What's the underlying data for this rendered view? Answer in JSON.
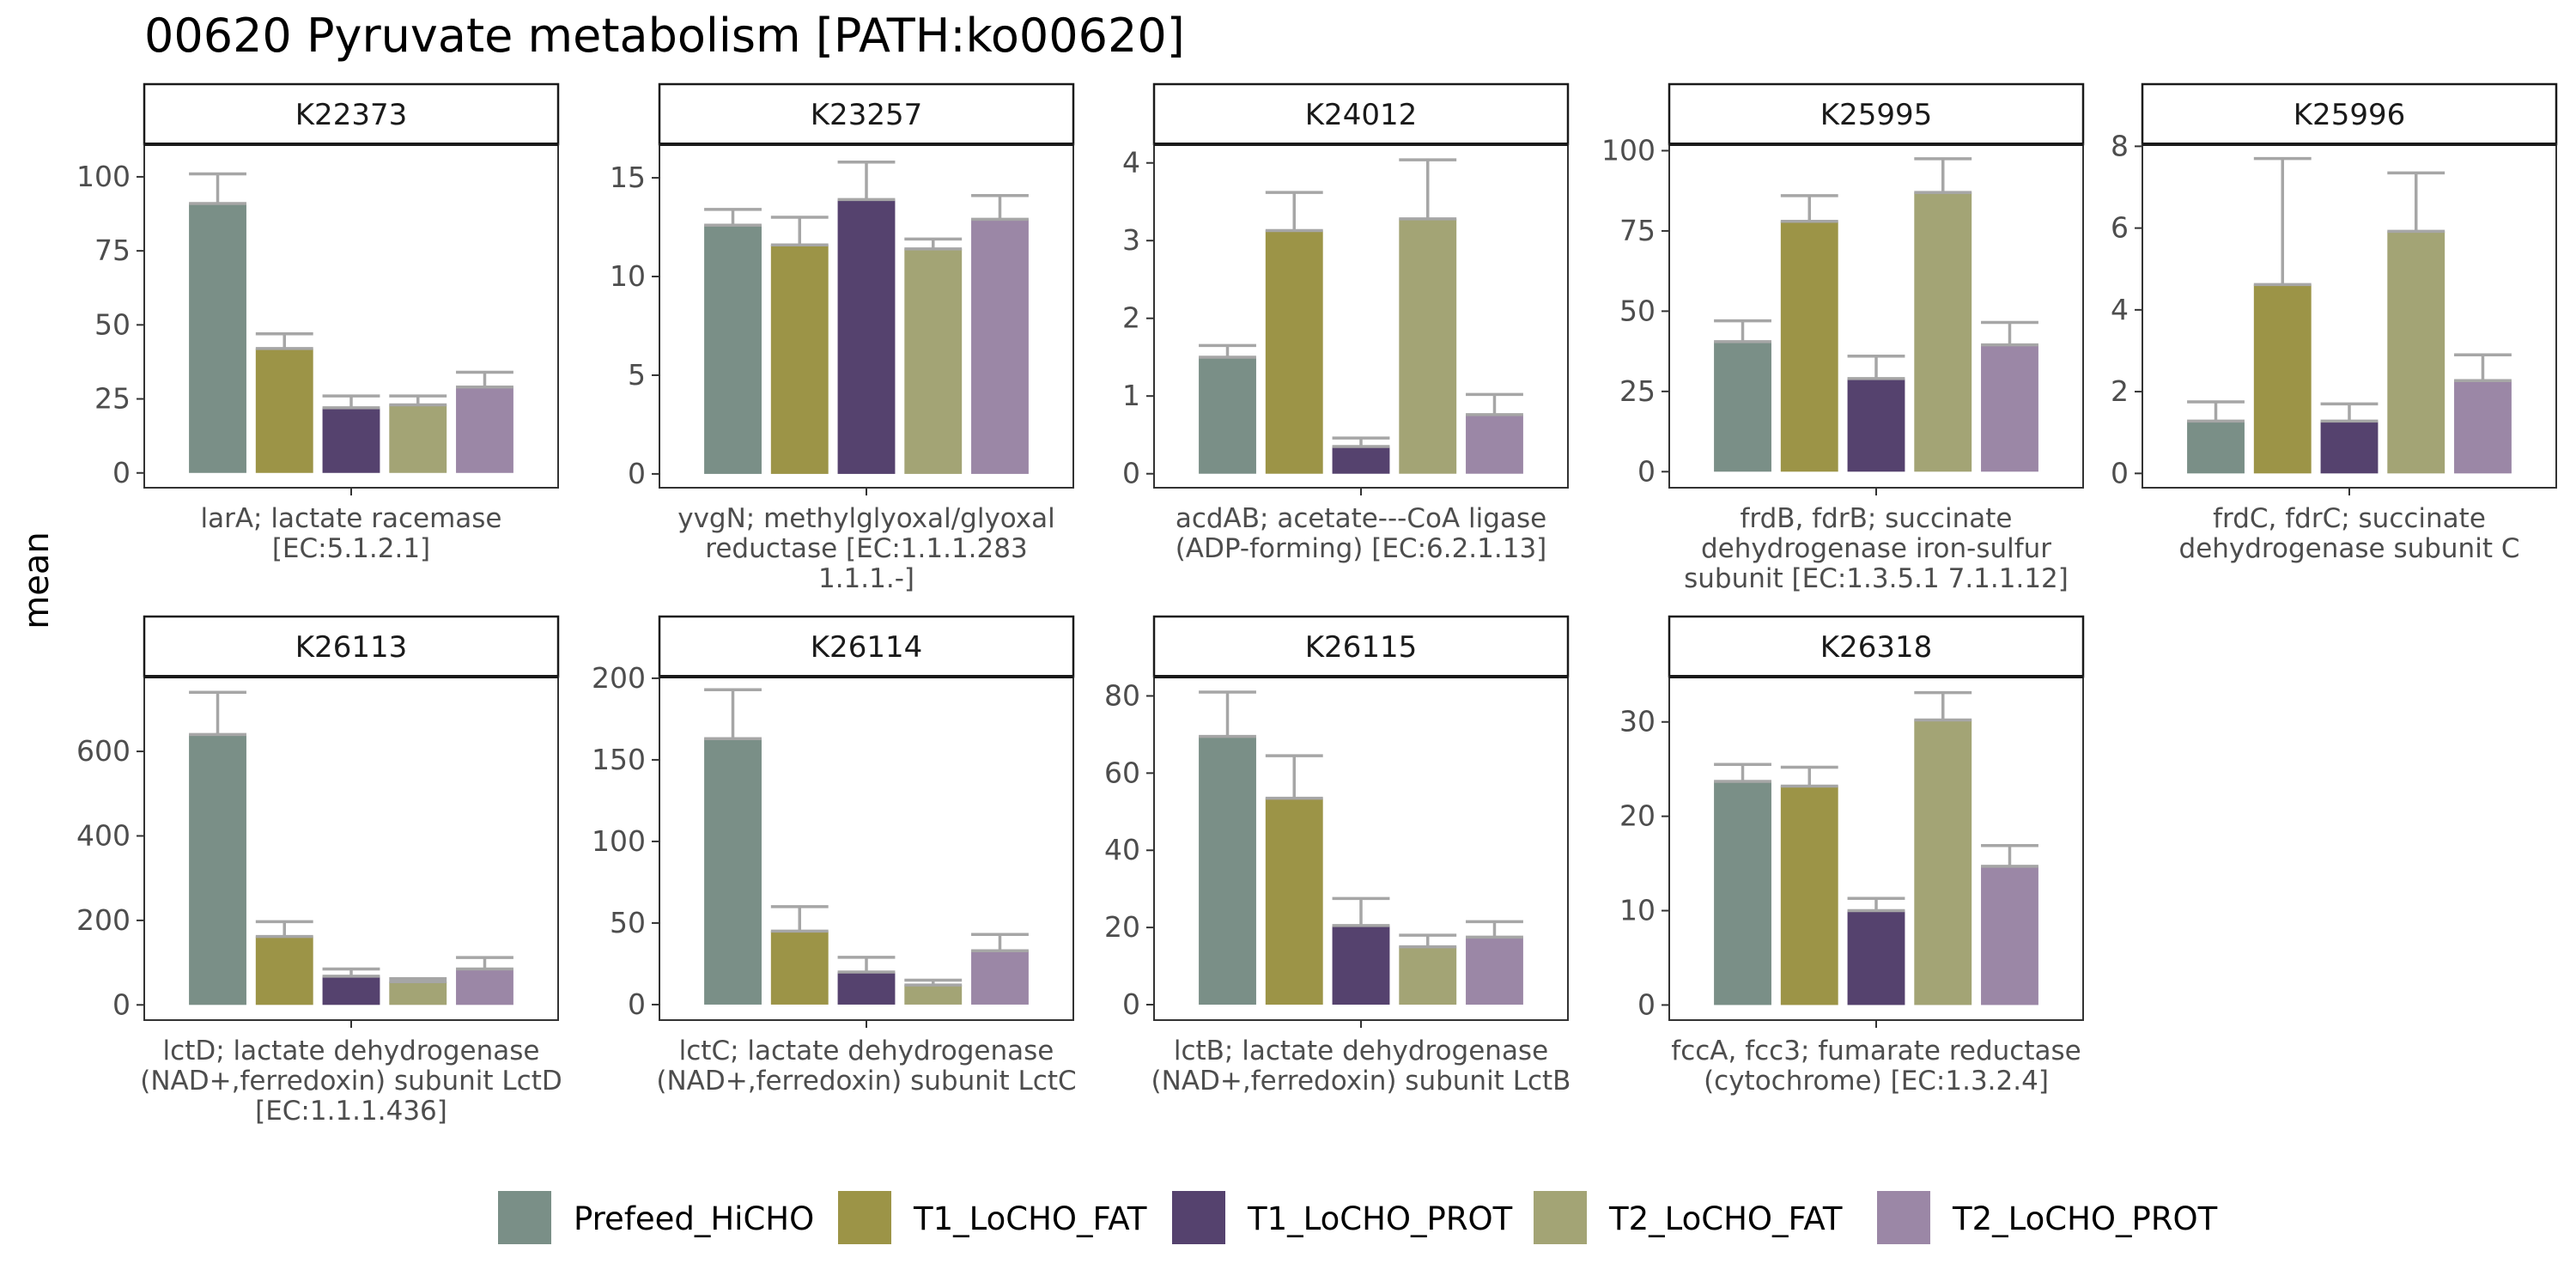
{
  "title": "00620 Pyruvate metabolism [PATH:ko00620]",
  "ylabel": "mean",
  "groups": [
    "Prefeed_HiCHO",
    "T1_LoCHO_FAT",
    "T1_LoCHO_PROT",
    "T2_LoCHO_FAT",
    "T2_LoCHO_PROT"
  ],
  "colors": {
    "Prefeed_HiCHO": "#7a8f87",
    "T1_LoCHO_FAT": "#9c9447",
    "T1_LoCHO_PROT": "#55426e",
    "T2_LoCHO_FAT": "#a3a475",
    "T2_LoCHO_PROT": "#9b87a6",
    "errorbar": "#a6a6a6"
  },
  "chart_data": [
    {
      "type": "bar",
      "title": "K22373",
      "xlabel": [
        "larA; lactate racemase",
        "[EC:5.1.2.1]"
      ],
      "categories": [
        "Prefeed_HiCHO",
        "T1_LoCHO_FAT",
        "T1_LoCHO_PROT",
        "T2_LoCHO_FAT",
        "T2_LoCHO_PROT"
      ],
      "values": [
        91,
        42,
        22,
        23,
        29
      ],
      "err_upper": [
        101,
        47,
        26,
        26,
        34
      ],
      "yticks": [
        0,
        25,
        50,
        75,
        100
      ],
      "ylim": [
        -5,
        111
      ]
    },
    {
      "type": "bar",
      "title": "K23257",
      "xlabel": [
        "yvgN; methylglyoxal/glyoxal",
        "reductase [EC:1.1.1.283",
        "1.1.1.-]"
      ],
      "categories": [
        "Prefeed_HiCHO",
        "T1_LoCHO_FAT",
        "T1_LoCHO_PROT",
        "T2_LoCHO_FAT",
        "T2_LoCHO_PROT"
      ],
      "values": [
        12.6,
        11.6,
        13.9,
        11.4,
        12.9
      ],
      "err_upper": [
        13.4,
        13.0,
        15.8,
        11.9,
        14.1
      ],
      "yticks": [
        0,
        5,
        10,
        15
      ],
      "ylim": [
        -0.7,
        16.7
      ]
    },
    {
      "type": "bar",
      "title": "K24012",
      "xlabel": [
        "acdAB; acetate---CoA ligase",
        "(ADP-forming) [EC:6.2.1.13]"
      ],
      "categories": [
        "Prefeed_HiCHO",
        "T1_LoCHO_FAT",
        "T1_LoCHO_PROT",
        "T2_LoCHO_FAT",
        "T2_LoCHO_PROT"
      ],
      "values": [
        1.5,
        3.13,
        0.35,
        3.28,
        0.76
      ],
      "err_upper": [
        1.65,
        3.62,
        0.46,
        4.04,
        1.02
      ],
      "yticks": [
        0,
        1,
        2,
        3,
        4
      ],
      "ylim": [
        -0.18,
        4.24
      ]
    },
    {
      "type": "bar",
      "title": "K25995",
      "xlabel": [
        "frdB, fdrB; succinate",
        "dehydrogenase iron-sulfur",
        "subunit [EC:1.3.5.1 7.1.1.12]"
      ],
      "categories": [
        "Prefeed_HiCHO",
        "T1_LoCHO_FAT",
        "T1_LoCHO_PROT",
        "T2_LoCHO_FAT",
        "T2_LoCHO_PROT"
      ],
      "values": [
        40.5,
        78,
        29,
        87,
        39.5
      ],
      "err_upper": [
        47,
        86,
        36,
        97.5,
        46.5
      ],
      "yticks": [
        0,
        25,
        50,
        75,
        100
      ],
      "ylim": [
        -5,
        102
      ]
    },
    {
      "type": "bar",
      "title": "K25996",
      "xlabel": [
        "frdC, fdrC; succinate",
        "dehydrogenase subunit C"
      ],
      "categories": [
        "Prefeed_HiCHO",
        "T1_LoCHO_FAT",
        "T1_LoCHO_PROT",
        "T2_LoCHO_FAT",
        "T2_LoCHO_PROT"
      ],
      "values": [
        1.28,
        4.62,
        1.28,
        5.92,
        2.27
      ],
      "err_upper": [
        1.75,
        7.7,
        1.7,
        7.35,
        2.9
      ],
      "yticks": [
        0,
        2,
        4,
        6,
        8
      ],
      "ylim": [
        -0.35,
        8.05
      ]
    },
    {
      "type": "bar",
      "title": "K26113",
      "xlabel": [
        "lctD; lactate dehydrogenase",
        "(NAD+,ferredoxin) subunit LctD",
        "[EC:1.1.1.436]"
      ],
      "categories": [
        "Prefeed_HiCHO",
        "T1_LoCHO_FAT",
        "T1_LoCHO_PROT",
        "T2_LoCHO_FAT",
        "T2_LoCHO_PROT"
      ],
      "values": [
        640,
        162,
        68,
        55,
        85
      ],
      "err_upper": [
        740,
        197,
        85,
        62,
        112
      ],
      "yticks": [
        0,
        200,
        400,
        600
      ],
      "ylim": [
        -36,
        777
      ]
    },
    {
      "type": "bar",
      "title": "K26114",
      "xlabel": [
        "lctC; lactate dehydrogenase",
        "(NAD+,ferredoxin) subunit LctC"
      ],
      "categories": [
        "Prefeed_HiCHO",
        "T1_LoCHO_FAT",
        "T1_LoCHO_PROT",
        "T2_LoCHO_FAT",
        "T2_LoCHO_PROT"
      ],
      "values": [
        163,
        45,
        20,
        12,
        33
      ],
      "err_upper": [
        193,
        60,
        29,
        15,
        43
      ],
      "yticks": [
        0,
        50,
        100,
        150,
        200
      ],
      "ylim": [
        -9.5,
        201
      ]
    },
    {
      "type": "bar",
      "title": "K26115",
      "xlabel": [
        "lctB; lactate dehydrogenase",
        "(NAD+,ferredoxin) subunit LctB"
      ],
      "categories": [
        "Prefeed_HiCHO",
        "T1_LoCHO_FAT",
        "T1_LoCHO_PROT",
        "T2_LoCHO_FAT",
        "T2_LoCHO_PROT"
      ],
      "values": [
        69.5,
        53.5,
        20.5,
        15,
        17.5
      ],
      "err_upper": [
        81,
        64.5,
        27.5,
        18,
        21.5
      ],
      "yticks": [
        0,
        20,
        40,
        60,
        80
      ],
      "ylim": [
        -4,
        85
      ]
    },
    {
      "type": "bar",
      "title": "K26318",
      "xlabel": [
        "fccA, fcc3; fumarate reductase",
        "(cytochrome) [EC:1.3.2.4]"
      ],
      "categories": [
        "Prefeed_HiCHO",
        "T1_LoCHO_FAT",
        "T1_LoCHO_PROT",
        "T2_LoCHO_FAT",
        "T2_LoCHO_PROT"
      ],
      "values": [
        23.7,
        23.2,
        10,
        30.2,
        14.7
      ],
      "err_upper": [
        25.5,
        25.2,
        11.3,
        33.1,
        16.9
      ],
      "yticks": [
        0,
        10,
        20,
        30
      ],
      "ylim": [
        -1.6,
        34.8
      ]
    }
  ]
}
